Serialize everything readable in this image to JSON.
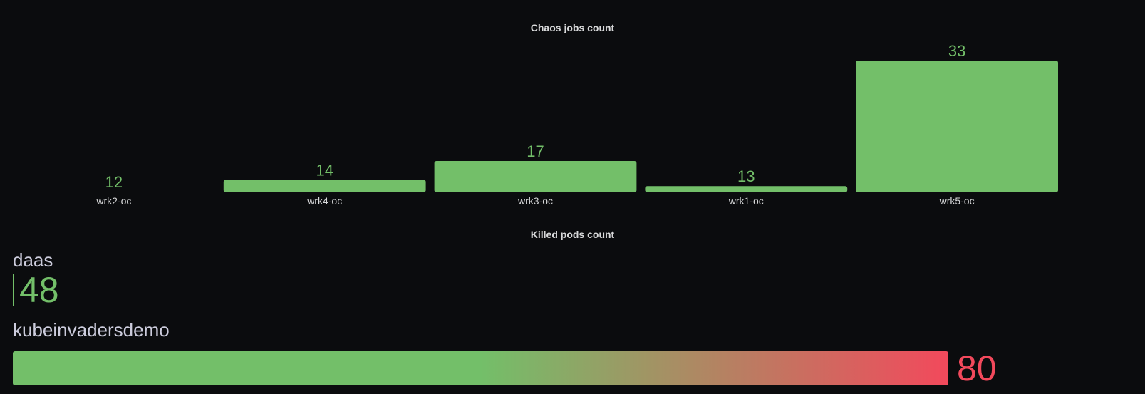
{
  "chart_data": [
    {
      "type": "bar",
      "title": "Chaos jobs count",
      "categories": [
        "wrk2-oc",
        "wrk4-oc",
        "wrk3-oc",
        "wrk1-oc",
        "wrk5-oc"
      ],
      "values": [
        12,
        14,
        17,
        13,
        33
      ],
      "ylim": [
        12,
        33
      ],
      "xlabel": "",
      "ylabel": "",
      "grid": false,
      "bar_color": "#73bf69",
      "value_color": "#73bf69"
    },
    {
      "type": "bar",
      "orientation": "horizontal",
      "title": "Killed pods count",
      "categories": [
        "daas",
        "kubeinvadersdemo"
      ],
      "values": [
        48,
        80
      ],
      "xlim": [
        48,
        80
      ],
      "value_colors": [
        "#73bf69",
        "#f2495c"
      ],
      "gradient": [
        "#73bf69",
        "#f2495c"
      ]
    }
  ],
  "colors": {
    "background": "#0b0c0e",
    "text": "#d8d9da",
    "green": "#73bf69",
    "red": "#f2495c"
  }
}
